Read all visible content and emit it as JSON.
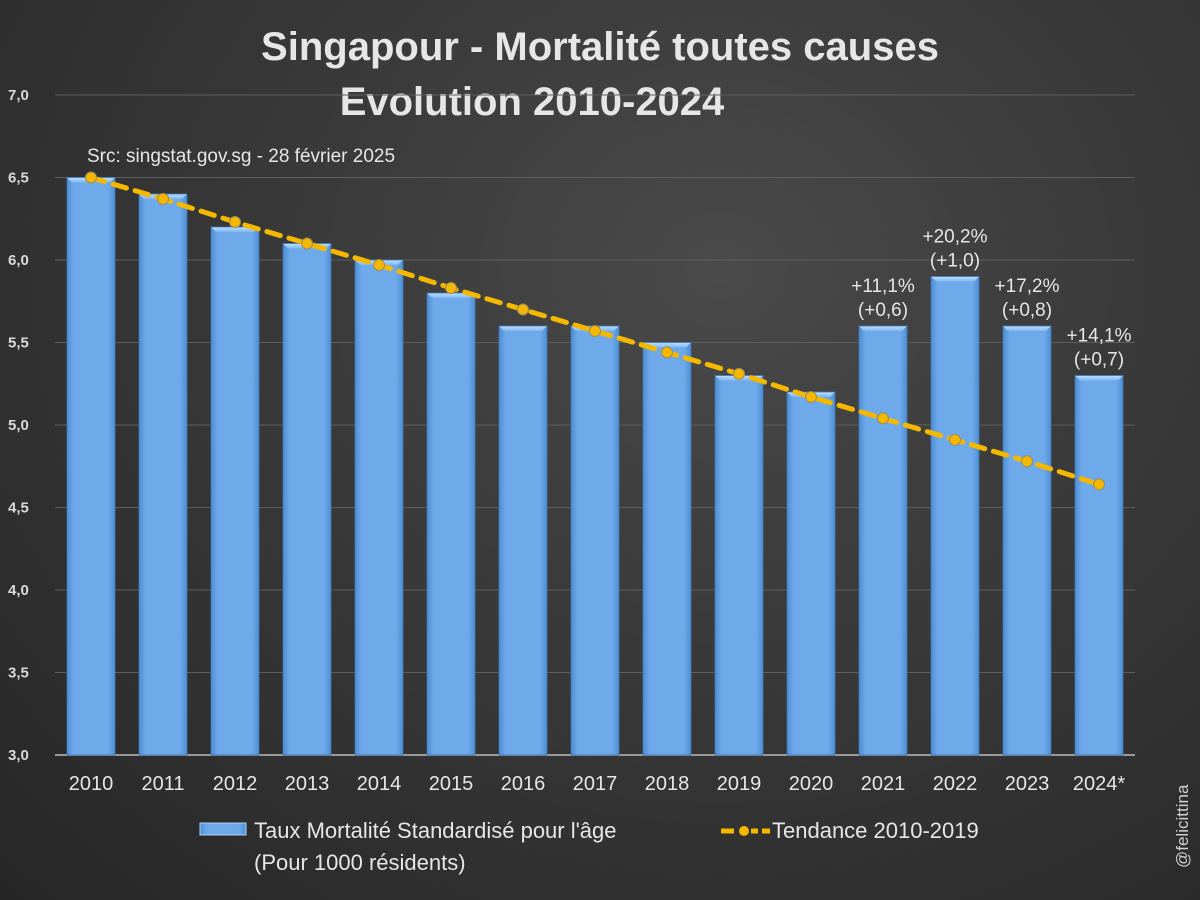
{
  "chart_data": {
    "type": "bar",
    "title": "Singapour - Mortalité toutes causes",
    "subtitle": "Evolution 2010-2024",
    "source_note": "Src: singstat.gov.sg - 28 février 2025",
    "credit": "@felicittina",
    "categories": [
      "2010",
      "2011",
      "2012",
      "2013",
      "2014",
      "2015",
      "2016",
      "2017",
      "2018",
      "2019",
      "2020",
      "2021",
      "2022",
      "2023",
      "2024*"
    ],
    "ylim": [
      3.0,
      7.0
    ],
    "yticks": [
      7.0,
      6.5,
      6.0,
      5.5,
      5.0,
      4.5,
      4.0,
      3.5,
      3.0
    ],
    "ytick_labels": [
      "7,0",
      "6,5",
      "6,0",
      "5,5",
      "5,0",
      "4,5",
      "4,0",
      "3,5",
      "3,0"
    ],
    "grid": true,
    "series": [
      {
        "name": "Taux Mortalité Standardisé pour l'âge",
        "name_line2": "(Pour 1000 résidents)",
        "type": "bar",
        "color": "#6aa7e6",
        "values": [
          6.5,
          6.4,
          6.2,
          6.1,
          6.0,
          5.8,
          5.6,
          5.6,
          5.5,
          5.3,
          5.2,
          5.6,
          5.9,
          5.6,
          5.3
        ]
      },
      {
        "name": "Tendance 2010-2019",
        "type": "line",
        "style": "dashed",
        "color": "#f5b800",
        "values": [
          6.5,
          6.37,
          6.23,
          6.1,
          5.97,
          5.83,
          5.7,
          5.57,
          5.44,
          5.31,
          5.17,
          5.04,
          4.91,
          4.78,
          4.64
        ]
      }
    ],
    "annotations": [
      {
        "category": "2021",
        "line1": "+11,1%",
        "line2": "(+0,6)"
      },
      {
        "category": "2022",
        "line1": "+20,2%",
        "line2": "(+1,0)"
      },
      {
        "category": "2023",
        "line1": "+17,2%",
        "line2": "(+0,8)"
      },
      {
        "category": "2024*",
        "line1": "+14,1%",
        "line2": "(+0,7)"
      }
    ],
    "legend_position": "bottom"
  }
}
